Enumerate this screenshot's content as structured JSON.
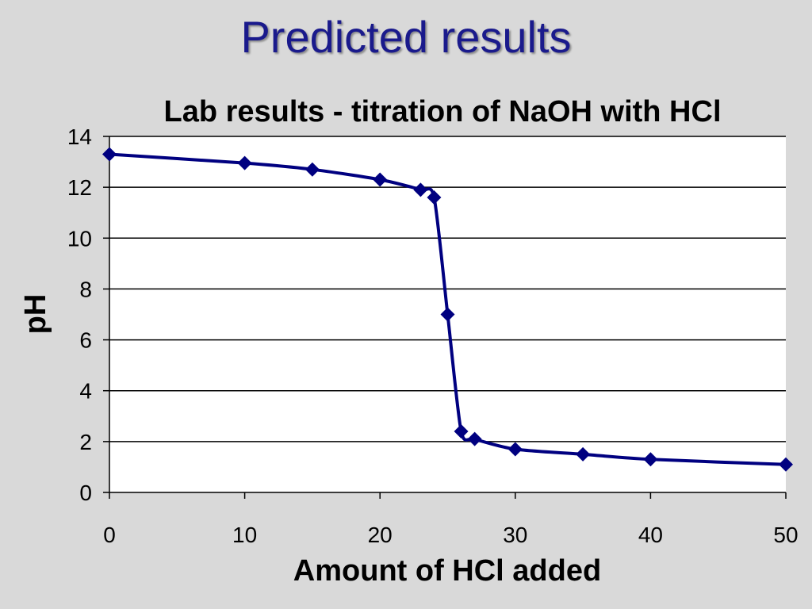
{
  "slide": {
    "title": "Predicted results"
  },
  "chart_data": {
    "type": "line",
    "title": "Lab results - titration of NaOH with HCl",
    "xlabel": "Amount of HCl added",
    "ylabel": "pH",
    "xlim": [
      0,
      50
    ],
    "ylim": [
      0,
      14
    ],
    "xticks": [
      0,
      10,
      20,
      30,
      40,
      50
    ],
    "yticks": [
      0,
      2,
      4,
      6,
      8,
      10,
      12,
      14
    ],
    "grid": "horizontal",
    "legend": "none",
    "series": [
      {
        "color": "#000080",
        "marker": "diamond",
        "points": [
          {
            "x": 0,
            "y": 13.3
          },
          {
            "x": 10,
            "y": 12.95
          },
          {
            "x": 15,
            "y": 12.7
          },
          {
            "x": 20,
            "y": 12.3
          },
          {
            "x": 23,
            "y": 11.9
          },
          {
            "x": 24,
            "y": 11.6
          },
          {
            "x": 25,
            "y": 7.0
          },
          {
            "x": 26,
            "y": 2.4
          },
          {
            "x": 27,
            "y": 2.1
          },
          {
            "x": 30,
            "y": 1.7
          },
          {
            "x": 35,
            "y": 1.5
          },
          {
            "x": 40,
            "y": 1.3
          },
          {
            "x": 50,
            "y": 1.1
          }
        ]
      }
    ]
  }
}
